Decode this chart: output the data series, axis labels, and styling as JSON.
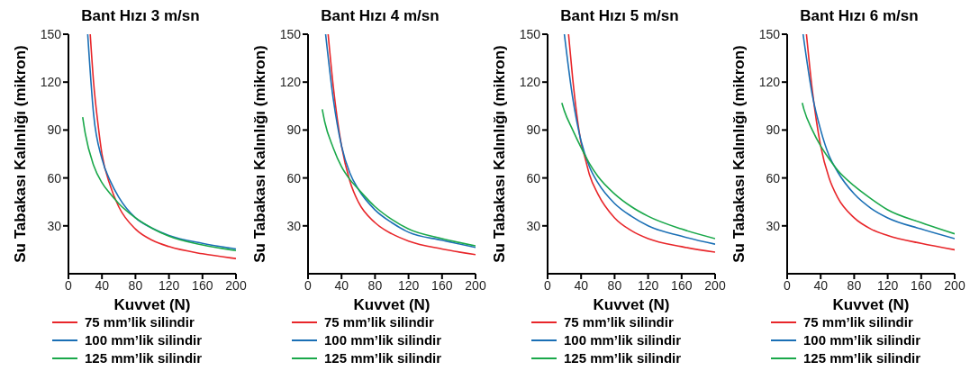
{
  "chart_data": [
    {
      "type": "line",
      "title": "Bant Hızı 3 m/sn",
      "xlabel": "Kuvvet (N)",
      "ylabel": "Su Tabakası Kalınlığı (mikron)",
      "xlim": [
        0,
        200
      ],
      "xticks": [
        0,
        40,
        80,
        120,
        160,
        200
      ],
      "ylim": [
        0,
        150
      ],
      "yticks": [
        30,
        60,
        90,
        120,
        150
      ],
      "grid": false,
      "legend": "bottom",
      "series": [
        {
          "name": "75 mm’lik silindir",
          "color": "#e8262a",
          "x": [
            26,
            30,
            35,
            40,
            50,
            60,
            80,
            100,
            120,
            160,
            200
          ],
          "values": [
            150,
            120,
            95,
            75,
            55,
            42,
            28,
            21,
            17,
            12.5,
            9.5
          ]
        },
        {
          "name": "100 mm’lik silindir",
          "color": "#1a6fb5",
          "x": [
            23,
            30,
            40,
            50,
            60,
            80,
            100,
            120,
            160,
            200
          ],
          "values": [
            150,
            100,
            72,
            58,
            48,
            35,
            28.5,
            24,
            19,
            15.5
          ]
        },
        {
          "name": "125 mm’lik silindir",
          "color": "#1aa84a",
          "x": [
            17,
            20,
            30,
            40,
            50,
            60,
            80,
            100,
            120,
            160,
            200
          ],
          "values": [
            98,
            88,
            68,
            57,
            50,
            44,
            35,
            28.5,
            23.5,
            18,
            14.5
          ]
        }
      ]
    },
    {
      "type": "line",
      "title": "Bant Hızı 4 m/sn",
      "xlabel": "Kuvvet (N)",
      "ylabel": "Su Tabakası Kalınlığı (mikron)",
      "xlim": [
        0,
        200
      ],
      "xticks": [
        0,
        40,
        80,
        120,
        160,
        200
      ],
      "ylim": [
        0,
        150
      ],
      "yticks": [
        30,
        60,
        90,
        120,
        150
      ],
      "grid": false,
      "legend": "bottom",
      "series": [
        {
          "name": "75 mm’lik silindir",
          "color": "#e8262a",
          "x": [
            24,
            30,
            40,
            50,
            60,
            80,
            100,
            120,
            160,
            200
          ],
          "values": [
            150,
            118,
            80,
            58,
            45,
            32,
            25,
            20.5,
            15.5,
            12
          ]
        },
        {
          "name": "100 mm’lik silindir",
          "color": "#1a6fb5",
          "x": [
            21,
            30,
            40,
            50,
            60,
            80,
            100,
            120,
            160,
            200
          ],
          "values": [
            150,
            110,
            80,
            63,
            53,
            40,
            32,
            26,
            21,
            16.5
          ]
        },
        {
          "name": "125 mm’lik silindir",
          "color": "#1aa84a",
          "x": [
            17,
            20,
            30,
            40,
            50,
            60,
            80,
            100,
            120,
            160,
            200
          ],
          "values": [
            103,
            95,
            79,
            67,
            59,
            53,
            42,
            34,
            28,
            22,
            17.5
          ]
        }
      ]
    },
    {
      "type": "line",
      "title": "Bant Hızı 5 m/sn",
      "xlabel": "Kuvvet (N)",
      "ylabel": "Su Tabakası Kalınlığı (mikron)",
      "xlim": [
        0,
        200
      ],
      "xticks": [
        0,
        40,
        80,
        120,
        160,
        200
      ],
      "ylim": [
        0,
        150
      ],
      "yticks": [
        30,
        60,
        90,
        120,
        150
      ],
      "grid": false,
      "legend": "bottom",
      "series": [
        {
          "name": "75 mm’lik silindir",
          "color": "#e8262a",
          "x": [
            25,
            30,
            40,
            45,
            50,
            60,
            80,
            100,
            120,
            160,
            200
          ],
          "values": [
            150,
            122,
            82,
            72,
            62,
            50,
            35,
            27,
            22,
            17,
            13.5
          ]
        },
        {
          "name": "100 mm’lik silindir",
          "color": "#1a6fb5",
          "x": [
            20,
            30,
            40,
            50,
            60,
            80,
            100,
            120,
            160,
            200
          ],
          "values": [
            150,
            110,
            83,
            67,
            57,
            44,
            36,
            30,
            23.5,
            18.5
          ]
        },
        {
          "name": "125 mm’lik silindir",
          "color": "#1aa84a",
          "x": [
            17,
            20,
            30,
            40,
            50,
            60,
            80,
            100,
            120,
            160,
            200
          ],
          "values": [
            107,
            102,
            90,
            79,
            69,
            61,
            50,
            42,
            36,
            28,
            22
          ]
        }
      ]
    },
    {
      "type": "line",
      "title": "Bant Hızı 6 m/sn",
      "xlabel": "Kuvvet (N)",
      "ylabel": "Su Tabakası Kalınlığı (mikron)",
      "xlim": [
        0,
        200
      ],
      "xticks": [
        0,
        40,
        80,
        120,
        160,
        200
      ],
      "ylim": [
        0,
        150
      ],
      "yticks": [
        30,
        60,
        90,
        120,
        150
      ],
      "grid": false,
      "legend": "bottom",
      "series": [
        {
          "name": "75 mm’lik silindir",
          "color": "#e8262a",
          "x": [
            23,
            30,
            40,
            50,
            60,
            80,
            100,
            120,
            160,
            200
          ],
          "values": [
            150,
            115,
            80,
            60,
            48,
            35,
            28,
            24,
            19,
            15
          ]
        },
        {
          "name": "100 mm’lik silindir",
          "color": "#1a6fb5",
          "x": [
            19,
            30,
            40,
            50,
            60,
            80,
            100,
            120,
            160,
            200
          ],
          "values": [
            150,
            112,
            90,
            74,
            64,
            50,
            41,
            35,
            28,
            22
          ]
        },
        {
          "name": "125 mm’lik silindir",
          "color": "#1aa84a",
          "x": [
            18,
            20,
            30,
            40,
            50,
            60,
            80,
            100,
            120,
            160,
            200
          ],
          "values": [
            107,
            103,
            90,
            80,
            72,
            65,
            55,
            47,
            40,
            32,
            25
          ]
        }
      ]
    }
  ]
}
